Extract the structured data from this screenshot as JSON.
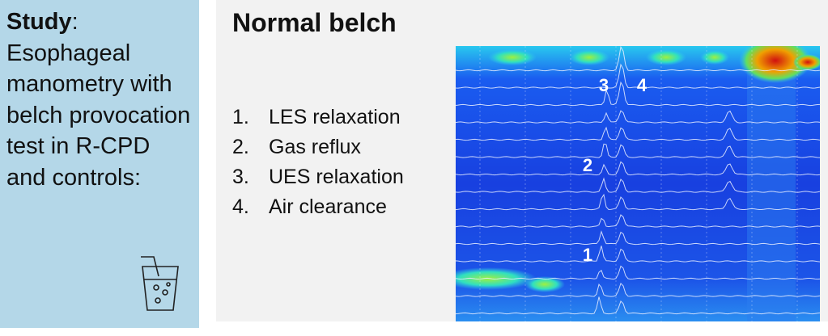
{
  "panel": {
    "heading": "Study",
    "heading_suffix": ":",
    "text": "Esophageal manometry with belch provocation test in R-CPD and controls:"
  },
  "title": "Normal belch",
  "list": [
    {
      "number": "1.",
      "text": "LES relaxation"
    },
    {
      "number": "2.",
      "text": "Gas reflux"
    },
    {
      "number": "3.",
      "text": "UES relaxation"
    },
    {
      "number": "4.",
      "text": "Air clearance"
    }
  ],
  "image_labels": [
    "3",
    "4",
    "2",
    "1"
  ]
}
